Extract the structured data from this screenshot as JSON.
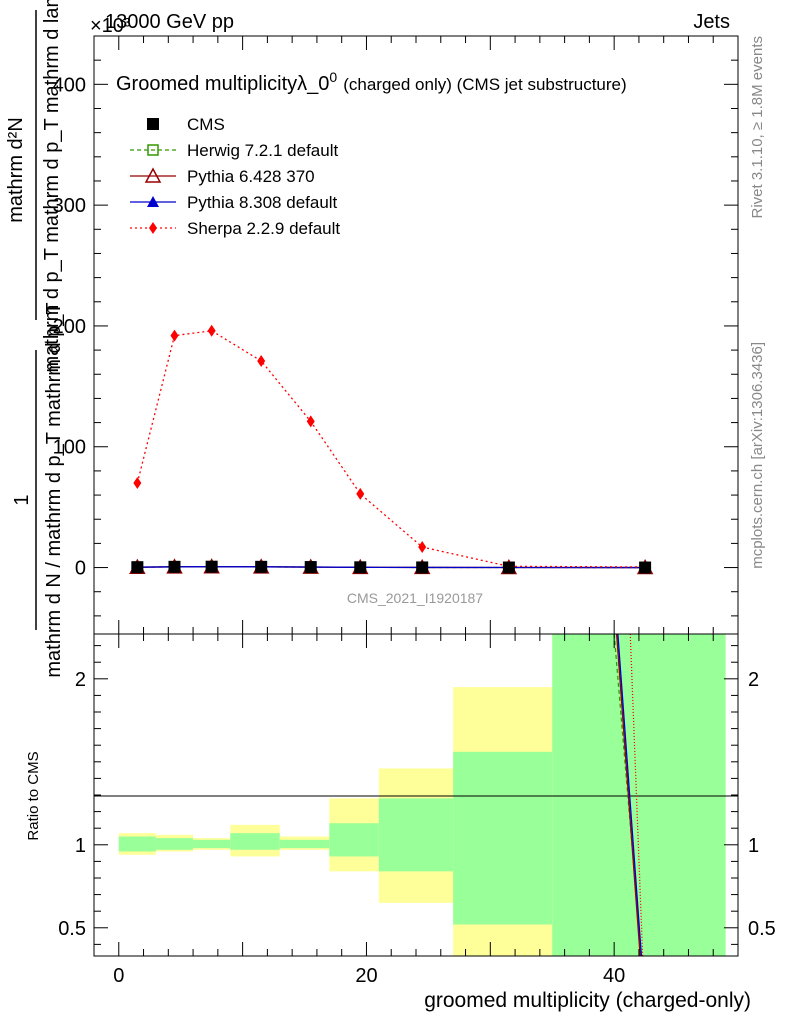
{
  "header": {
    "energy": "13000 GeV pp",
    "category": "Jets",
    "exponent": "×10³"
  },
  "side_labels": {
    "rivet": "Rivet 3.1.10, ≥ 1.8M events",
    "mcplots": "mcplots.cern.ch [arXiv:1306.3436]"
  },
  "chart_data": {
    "type": "line",
    "title_main": "Groomed multiplicityλ_0",
    "title_sup": "0",
    "title_rest": "(charged only) (CMS jet substructure)",
    "analysis_id": "CMS_2021_I1920187",
    "y_label_top": {
      "numerator": "mathrm d²N",
      "denominator": "mathrm d p_T mathrm d p_T mathrm d lambda",
      "prefix_num": "1",
      "prefix_den": "mathrm d N / mathrm d p_T mathrm d p_T"
    },
    "ratio_ylabel": "Ratio to CMS",
    "xlabel": "groomed multiplicity (charged-only)",
    "xlim": [
      -2,
      50
    ],
    "top_ylim": [
      -55,
      440
    ],
    "top_yticks": [
      0,
      100,
      200,
      300,
      400
    ],
    "ratio_ylim": [
      0.33,
      2.27
    ],
    "ratio_yticks": [
      0.5,
      1,
      2
    ],
    "xticks": [
      0,
      20,
      40
    ],
    "x": [
      1.5,
      4.5,
      7.5,
      11.5,
      15.5,
      19.5,
      24.5,
      31.5,
      42.5
    ],
    "series": [
      {
        "name": "CMS",
        "color": "#000000",
        "marker": "square-filled",
        "line": "none",
        "values": [
          0.3,
          0.6,
          0.7,
          0.6,
          0.4,
          0.2,
          0.1,
          0.02,
          0.01
        ]
      },
      {
        "name": "Herwig 7.2.1 default",
        "color": "#339900",
        "marker": "square-open",
        "line": "dashed",
        "values": [
          0.3,
          0.6,
          0.7,
          0.6,
          0.4,
          0.2,
          0.1,
          0.02,
          0.01
        ]
      },
      {
        "name": "Pythia 6.428 370",
        "color": "#990000",
        "marker": "triangle-open",
        "line": "solid",
        "values": [
          0.3,
          0.6,
          0.7,
          0.6,
          0.4,
          0.2,
          0.1,
          0.02,
          0.01
        ]
      },
      {
        "name": "Pythia 8.308 default",
        "color": "#0000cc",
        "marker": "triangle-filled",
        "line": "solid",
        "values": [
          0.3,
          0.6,
          0.7,
          0.6,
          0.4,
          0.2,
          0.1,
          0.02,
          0.01
        ]
      },
      {
        "name": "Sherpa 2.2.9 default",
        "color": "#ff0000",
        "marker": "diamond-filled",
        "line": "dotted",
        "values": [
          70,
          192,
          196,
          171,
          121,
          61,
          17,
          1,
          0.5
        ]
      }
    ],
    "ratio_bands": [
      {
        "x0": 0,
        "x1": 3,
        "yellow": [
          0.94,
          1.07
        ],
        "green": [
          0.96,
          1.05
        ]
      },
      {
        "x0": 3,
        "x1": 6,
        "yellow": [
          0.96,
          1.06
        ],
        "green": [
          0.97,
          1.04
        ]
      },
      {
        "x0": 6,
        "x1": 9,
        "yellow": [
          0.97,
          1.04
        ],
        "green": [
          0.98,
          1.03
        ]
      },
      {
        "x0": 9,
        "x1": 13,
        "yellow": [
          0.93,
          1.12
        ],
        "green": [
          0.97,
          1.07
        ]
      },
      {
        "x0": 13,
        "x1": 17,
        "yellow": [
          0.97,
          1.05
        ],
        "green": [
          0.98,
          1.03
        ]
      },
      {
        "x0": 17,
        "x1": 21,
        "yellow": [
          0.84,
          1.28
        ],
        "green": [
          0.93,
          1.13
        ]
      },
      {
        "x0": 21,
        "x1": 27,
        "yellow": [
          0.65,
          1.46
        ],
        "green": [
          0.84,
          1.28
        ]
      },
      {
        "x0": 27,
        "x1": 35,
        "yellow": [
          0.33,
          1.95
        ],
        "green": [
          0.52,
          1.56
        ]
      },
      {
        "x0": 35,
        "x1": 49,
        "yellow": [
          0.33,
          2.27
        ],
        "green": [
          0.33,
          2.27
        ]
      }
    ],
    "ratio_lines": [
      {
        "name": "Herwig 7.2.1 default",
        "color": "#339900",
        "dash": "4,3",
        "points": [
          [
            40.0,
            2.27
          ],
          [
            42.2,
            0.33
          ]
        ]
      },
      {
        "name": "Pythia 6.428 370",
        "color": "#990000",
        "dash": "",
        "points": [
          [
            40.2,
            2.27
          ],
          [
            42.1,
            0.33
          ]
        ]
      },
      {
        "name": "Pythia 8.308 default",
        "color": "#0000cc",
        "dash": "",
        "points": [
          [
            40.3,
            2.27
          ],
          [
            42.2,
            0.33
          ]
        ]
      },
      {
        "name": "Sherpa 2.2.9 default",
        "color": "#ff0000",
        "dash": "1,2",
        "points": [
          [
            41.3,
            2.27
          ],
          [
            42.3,
            0.33
          ]
        ]
      }
    ]
  }
}
